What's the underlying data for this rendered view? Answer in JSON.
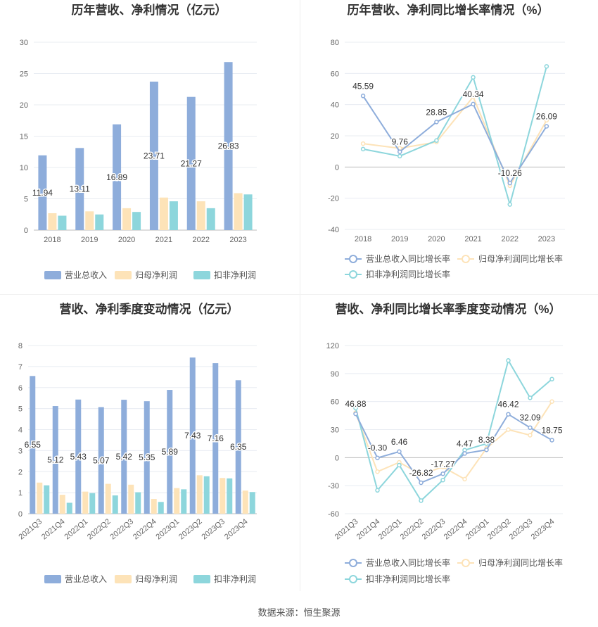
{
  "source_text": "数据来源：恒生聚源",
  "colors": {
    "revenue": "#8eaddb",
    "net_profit": "#fde3b8",
    "deducted_profit": "#8dd6dc"
  },
  "chart_data": [
    {
      "id": "annual_bar",
      "type": "bar",
      "title": "历年营收、净利情况（亿元）",
      "categories": [
        "2018",
        "2019",
        "2020",
        "2021",
        "2022",
        "2023"
      ],
      "ylim": [
        0,
        30
      ],
      "yticks": [
        0,
        5,
        10,
        15,
        20,
        25,
        30
      ],
      "legend_position": "bottom",
      "series": [
        {
          "name": "营业总收入",
          "values": [
            11.94,
            13.11,
            16.89,
            23.71,
            21.27,
            26.83
          ]
        },
        {
          "name": "归母净利润",
          "values": [
            2.7,
            3.0,
            3.5,
            5.2,
            4.6,
            5.9
          ]
        },
        {
          "name": "扣非净利润",
          "values": [
            2.3,
            2.5,
            2.9,
            4.6,
            3.5,
            5.7
          ]
        }
      ],
      "data_labels": [
        "11.94",
        "13.11",
        "16.89",
        "23.71",
        "21.27",
        "26.83"
      ]
    },
    {
      "id": "annual_line",
      "type": "line",
      "title": "历年营收、净利同比增长率情况（%）",
      "categories": [
        "2018",
        "2019",
        "2020",
        "2021",
        "2022",
        "2023"
      ],
      "ylim": [
        -40,
        80
      ],
      "yticks": [
        -40,
        -20,
        0,
        20,
        40,
        60,
        80
      ],
      "legend_position": "bottom",
      "series": [
        {
          "name": "营业总收入同比增长率",
          "values": [
            45.59,
            9.76,
            28.85,
            40.34,
            -10.26,
            26.09
          ]
        },
        {
          "name": "归母净利润同比增长率",
          "values": [
            15,
            12,
            16,
            45,
            -12,
            30
          ]
        },
        {
          "name": "扣非净利润同比增长率",
          "values": [
            11.5,
            7,
            17,
            57.5,
            -24,
            64.5
          ]
        }
      ],
      "data_labels": [
        "45.59",
        "9.76",
        "28.85",
        "40.34",
        "-10.26",
        "26.09"
      ]
    },
    {
      "id": "quarter_bar",
      "type": "bar",
      "title": "营收、净利季度变动情况（亿元）",
      "categories": [
        "2021Q3",
        "2021Q4",
        "2022Q1",
        "2022Q2",
        "2022Q3",
        "2022Q4",
        "2023Q1",
        "2023Q2",
        "2023Q3",
        "2023Q4"
      ],
      "ylim": [
        0,
        8
      ],
      "yticks": [
        0,
        1,
        2,
        3,
        4,
        5,
        6,
        7,
        8
      ],
      "legend_position": "bottom",
      "series": [
        {
          "name": "营业总收入",
          "values": [
            6.55,
            5.12,
            5.43,
            5.07,
            5.42,
            5.35,
            5.89,
            7.43,
            7.16,
            6.35
          ]
        },
        {
          "name": "归母净利润",
          "values": [
            1.48,
            0.9,
            1.05,
            1.42,
            1.38,
            0.7,
            1.22,
            1.83,
            1.7,
            1.1
          ]
        },
        {
          "name": "扣非净利润",
          "values": [
            1.35,
            0.52,
            0.98,
            0.87,
            1.02,
            0.56,
            1.16,
            1.78,
            1.68,
            1.03
          ]
        }
      ],
      "data_labels": [
        "6.55",
        "5.12",
        "5.43",
        "5.07",
        "5.42",
        "5.35",
        "5.89",
        "7.43",
        "7.16",
        "6.35"
      ]
    },
    {
      "id": "quarter_line",
      "type": "line",
      "title": "营收、净利同比增长率季度变动情况（%）",
      "categories": [
        "2021Q3",
        "2021Q4",
        "2022Q1",
        "2022Q2",
        "2022Q3",
        "2022Q4",
        "2023Q1",
        "2023Q2",
        "2023Q3",
        "2023Q4"
      ],
      "ylim": [
        -60,
        120
      ],
      "yticks": [
        -60,
        -30,
        0,
        30,
        60,
        90,
        120
      ],
      "legend_position": "bottom",
      "series": [
        {
          "name": "营业总收入同比增长率",
          "values": [
            46.88,
            -0.3,
            6.46,
            -26.82,
            -17.27,
            4.47,
            8.38,
            46.42,
            32.09,
            18.75
          ]
        },
        {
          "name": "归母净利润同比增长率",
          "values": [
            48,
            -15,
            -5,
            -18,
            -10,
            -23,
            10,
            30,
            24,
            60
          ]
        },
        {
          "name": "扣非净利润同比增长率",
          "values": [
            53,
            -35,
            -8,
            -46,
            -24,
            8,
            15,
            104,
            64,
            84
          ]
        }
      ],
      "data_labels": [
        "46.88",
        "-0.30",
        "6.46",
        "-26.82",
        "-17.27",
        "4.47",
        "8.38",
        "46.42",
        "32.09",
        "18.75"
      ]
    }
  ]
}
